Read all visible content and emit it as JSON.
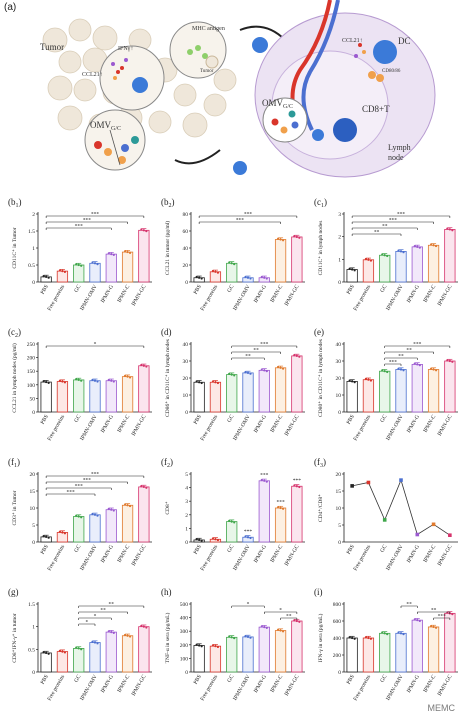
{
  "figure": {
    "panel_a": {
      "label": "(a)",
      "tumor_label": "Tumor",
      "ifn_label": "IFNγ↑",
      "ccl21_label": "CCL21↑",
      "mhc_label": "MHC antigen",
      "tumor_small": "Tumor",
      "omv_label": "OMV",
      "omv_sub": "G/C",
      "omv2_label": "OMV",
      "omv2_sub": "G/C",
      "dc_ccl21": "CCL21↑",
      "dc_label": "DC",
      "cd80": "CD80/86",
      "cd8t": "CD8+T",
      "lymph": "Lymph",
      "node": "node"
    },
    "watermark": "MEMC",
    "colors": {
      "red": "#d9352b",
      "orange": "#f0a04b",
      "blue": "#4b6fd0",
      "teal": "#2c9a98",
      "green": "#3fa64a",
      "purple": "#9b59d0",
      "pink": "#e06090"
    }
  },
  "chart_data": [
    {
      "id": "b1",
      "label_main": "(b",
      "label_sub": "1",
      "label_end": ")",
      "type": "bar",
      "categories": [
        "PBS",
        "Free proteins",
        "GC",
        "IPMN-OMV",
        "IPMN-G",
        "IPMN-C",
        "IPMN-GC"
      ],
      "values": [
        0.15,
        0.32,
        0.5,
        0.55,
        0.82,
        0.88,
        1.52
      ],
      "ylabel": "CD11C⁺ in Tumor",
      "ylim": [
        0,
        2.0
      ],
      "yticks": [
        0,
        0.5,
        1.0,
        1.5,
        2.0
      ],
      "sig": [
        {
          "from": 0,
          "to": 6,
          "text": "***"
        },
        {
          "from": 0,
          "to": 5,
          "text": "***"
        },
        {
          "from": 0,
          "to": 4,
          "text": "***"
        }
      ]
    },
    {
      "id": "b2",
      "label_main": "(b",
      "label_sub": "2",
      "label_end": ")",
      "type": "bar",
      "categories": [
        "PBS",
        "Free proteins",
        "GC",
        "IPMN-OMV",
        "IPMN-G",
        "IPMN-C",
        "IPMN-GC"
      ],
      "values": [
        5,
        12,
        22,
        5,
        5,
        50,
        53
      ],
      "ylabel": "CCL21 in tumor (pg/ml)",
      "ylim": [
        0,
        80
      ],
      "yticks": [
        0,
        20,
        40,
        60,
        80
      ],
      "sig": [
        {
          "from": 0,
          "to": 6,
          "text": "***"
        },
        {
          "from": 0,
          "to": 5,
          "text": "***"
        }
      ]
    },
    {
      "id": "c1",
      "label_main": "(c",
      "label_sub": "1",
      "label_end": ")",
      "type": "bar",
      "categories": [
        "PBS",
        "Free proteins",
        "GC",
        "IPMN-OMV",
        "IPMN-G",
        "IPMN-C",
        "IPMN-GC"
      ],
      "values": [
        0.55,
        0.98,
        1.18,
        1.35,
        1.55,
        1.62,
        2.32
      ],
      "ylabel": "CD11C⁺ in lymph nodes",
      "ylim": [
        0,
        3
      ],
      "yticks": [
        0,
        1,
        2,
        3
      ],
      "sig": [
        {
          "from": 0,
          "to": 6,
          "text": "***"
        },
        {
          "from": 0,
          "to": 5,
          "text": "***"
        },
        {
          "from": 0,
          "to": 4,
          "text": "**"
        },
        {
          "from": 0,
          "to": 3,
          "text": "**"
        }
      ]
    },
    {
      "id": "c2",
      "label_main": "(c",
      "label_sub": "2",
      "label_end": ")",
      "type": "bar",
      "categories": [
        "PBS",
        "Free proteins",
        "GC",
        "IPMN-OMV",
        "IPMN-G",
        "IPMN-C",
        "IPMN-GC"
      ],
      "values": [
        110,
        112,
        118,
        115,
        115,
        130,
        170
      ],
      "ylabel": "CCL21 in lymph nodes (pg/ml)",
      "ylim": [
        0,
        250
      ],
      "yticks": [
        0,
        50,
        100,
        150,
        200,
        250
      ],
      "sig": [
        {
          "from": 0,
          "to": 6,
          "text": "*"
        }
      ]
    },
    {
      "id": "d",
      "label_main": "(d",
      "label_sub": "",
      "label_end": ")",
      "type": "bar",
      "categories": [
        "PBS",
        "Free proteins",
        "GC",
        "IPMN-OMV",
        "IPMN-G",
        "IPMN-C",
        "IPMN-GC"
      ],
      "values": [
        17.5,
        17.5,
        22,
        23,
        24.5,
        26,
        33
      ],
      "ylabel": "CD86⁺ in CD11C⁺ in lymph nodes",
      "ylim": [
        0,
        40
      ],
      "yticks": [
        0,
        10,
        20,
        30,
        40
      ],
      "sig": [
        {
          "from": 2,
          "to": 6,
          "text": "***"
        },
        {
          "from": 2,
          "to": 5,
          "text": "**"
        },
        {
          "from": 2,
          "to": 4,
          "text": "**"
        }
      ]
    },
    {
      "id": "e",
      "label_main": "(e",
      "label_sub": "",
      "label_end": ")",
      "type": "bar",
      "categories": [
        "PBS",
        "Free proteins",
        "GC",
        "IPMN-OMV",
        "IPMN-G",
        "IPMN-C",
        "IPMN-GC"
      ],
      "values": [
        18,
        19,
        24,
        25,
        28,
        25,
        30
      ],
      "ylabel": "CD80⁺ in CD11C⁺ in lymph nodes",
      "ylim": [
        0,
        40
      ],
      "yticks": [
        0,
        10,
        20,
        30,
        40
      ],
      "sig": [
        {
          "from": 2,
          "to": 6,
          "text": "***"
        },
        {
          "from": 2,
          "to": 5,
          "text": "**"
        },
        {
          "from": 2,
          "to": 4,
          "text": "**"
        },
        {
          "from": 2,
          "to": 3,
          "text": "***"
        }
      ]
    },
    {
      "id": "f1",
      "label_main": "(f",
      "label_sub": "1",
      "label_end": ")",
      "type": "bar",
      "categories": [
        "PBS",
        "Free proteins",
        "GC",
        "IPMN-OMV",
        "IPMN-G",
        "IPMN-C",
        "IPMN-GC"
      ],
      "values": [
        1.5,
        2.8,
        7.5,
        8,
        9.5,
        10.8,
        16.2
      ],
      "ylabel": "CD3⁺ in Tumor",
      "ylim": [
        0,
        20
      ],
      "yticks": [
        0,
        5,
        10,
        15,
        20
      ],
      "sig": [
        {
          "from": 0,
          "to": 6,
          "text": "***"
        },
        {
          "from": 0,
          "to": 5,
          "text": "***"
        },
        {
          "from": 0,
          "to": 4,
          "text": "***"
        },
        {
          "from": 0,
          "to": 3,
          "text": "***"
        }
      ]
    },
    {
      "id": "f2",
      "label_main": "(f",
      "label_sub": "2",
      "label_end": ")",
      "type": "bar",
      "categories": [
        "PBS",
        "Free proteins",
        "GC",
        "IPMN-OMV",
        "IPMN-G",
        "IPMN-C",
        "IPMN-GC"
      ],
      "values": [
        0.15,
        0.2,
        1.5,
        0.35,
        4.5,
        2.5,
        4.1
      ],
      "ylabel": "CD8⁺",
      "ylim": [
        0,
        5
      ],
      "yticks": [
        0,
        1,
        2,
        3,
        4,
        5
      ],
      "point_labels": [
        "",
        "",
        "",
        "***",
        "***",
        "***",
        "***"
      ],
      "sig": []
    },
    {
      "id": "f3",
      "label_main": "(f",
      "label_sub": "3",
      "label_end": ")",
      "type": "line",
      "categories": [
        "PBS",
        "Free proteins",
        "GC",
        "IPMN-OMV",
        "IPMN-G",
        "IPMN-C",
        "IPMN-GC"
      ],
      "values": [
        16.5,
        17.5,
        6.5,
        18.2,
        2.2,
        5.2,
        2.0
      ],
      "ylabel": "CD4⁺/CD8⁺",
      "ylim": [
        0,
        20
      ],
      "yticks": [
        0,
        5,
        10,
        15,
        20
      ],
      "sig": []
    },
    {
      "id": "g",
      "label_main": "(g",
      "label_sub": "",
      "label_end": ")",
      "type": "bar",
      "categories": [
        "PBS",
        "Free proteins",
        "GC",
        "IPMN-OMV",
        "IPMN-G",
        "IPMN-C",
        "IPMN-GC"
      ],
      "values": [
        0.42,
        0.45,
        0.52,
        0.65,
        0.88,
        0.8,
        1.0
      ],
      "ylabel": "CD8⁺IFN-γ⁺ in tumor",
      "ylim": [
        0,
        1.5
      ],
      "yticks": [
        0,
        0.5,
        1.0,
        1.5
      ],
      "sig": [
        {
          "from": 2,
          "to": 6,
          "text": "**"
        },
        {
          "from": 2,
          "to": 5,
          "text": "**"
        },
        {
          "from": 2,
          "to": 4,
          "text": "*"
        },
        {
          "from": 2,
          "to": 3,
          "text": "*"
        }
      ]
    },
    {
      "id": "h",
      "label_main": "(h",
      "label_sub": "",
      "label_end": ")",
      "type": "bar",
      "categories": [
        "PBS",
        "Free proteins",
        "GC",
        "IPMN-OMV",
        "IPMN-G",
        "IPMN-C",
        "IPMN-GC"
      ],
      "values": [
        195,
        190,
        255,
        258,
        330,
        305,
        375
      ],
      "ylabel": "TNF-α in sera (pg/mL)",
      "ylim": [
        0,
        500
      ],
      "yticks": [
        0,
        100,
        200,
        300,
        400,
        500
      ],
      "sig": [
        {
          "from": 2,
          "to": 4,
          "text": "*"
        },
        {
          "from": 4,
          "to": 6,
          "text": "*"
        },
        {
          "from": 5,
          "to": 6,
          "text": "**"
        }
      ]
    },
    {
      "id": "i",
      "label_main": "(i",
      "label_sub": "",
      "label_end": ")",
      "type": "bar",
      "categories": [
        "PBS",
        "Free proteins",
        "GC",
        "IPMN-OMV",
        "IPMN-G",
        "IPMN-C",
        "IPMN-GC"
      ],
      "values": [
        400,
        400,
        455,
        455,
        610,
        530,
        690
      ],
      "ylabel": "IFN-γ in sera (pg/mL)",
      "ylim": [
        0,
        800
      ],
      "yticks": [
        0,
        200,
        400,
        600,
        800
      ],
      "sig": [
        {
          "from": 3,
          "to": 4,
          "text": "**"
        },
        {
          "from": 4,
          "to": 6,
          "text": "**"
        },
        {
          "from": 5,
          "to": 6,
          "text": "***"
        }
      ]
    }
  ]
}
